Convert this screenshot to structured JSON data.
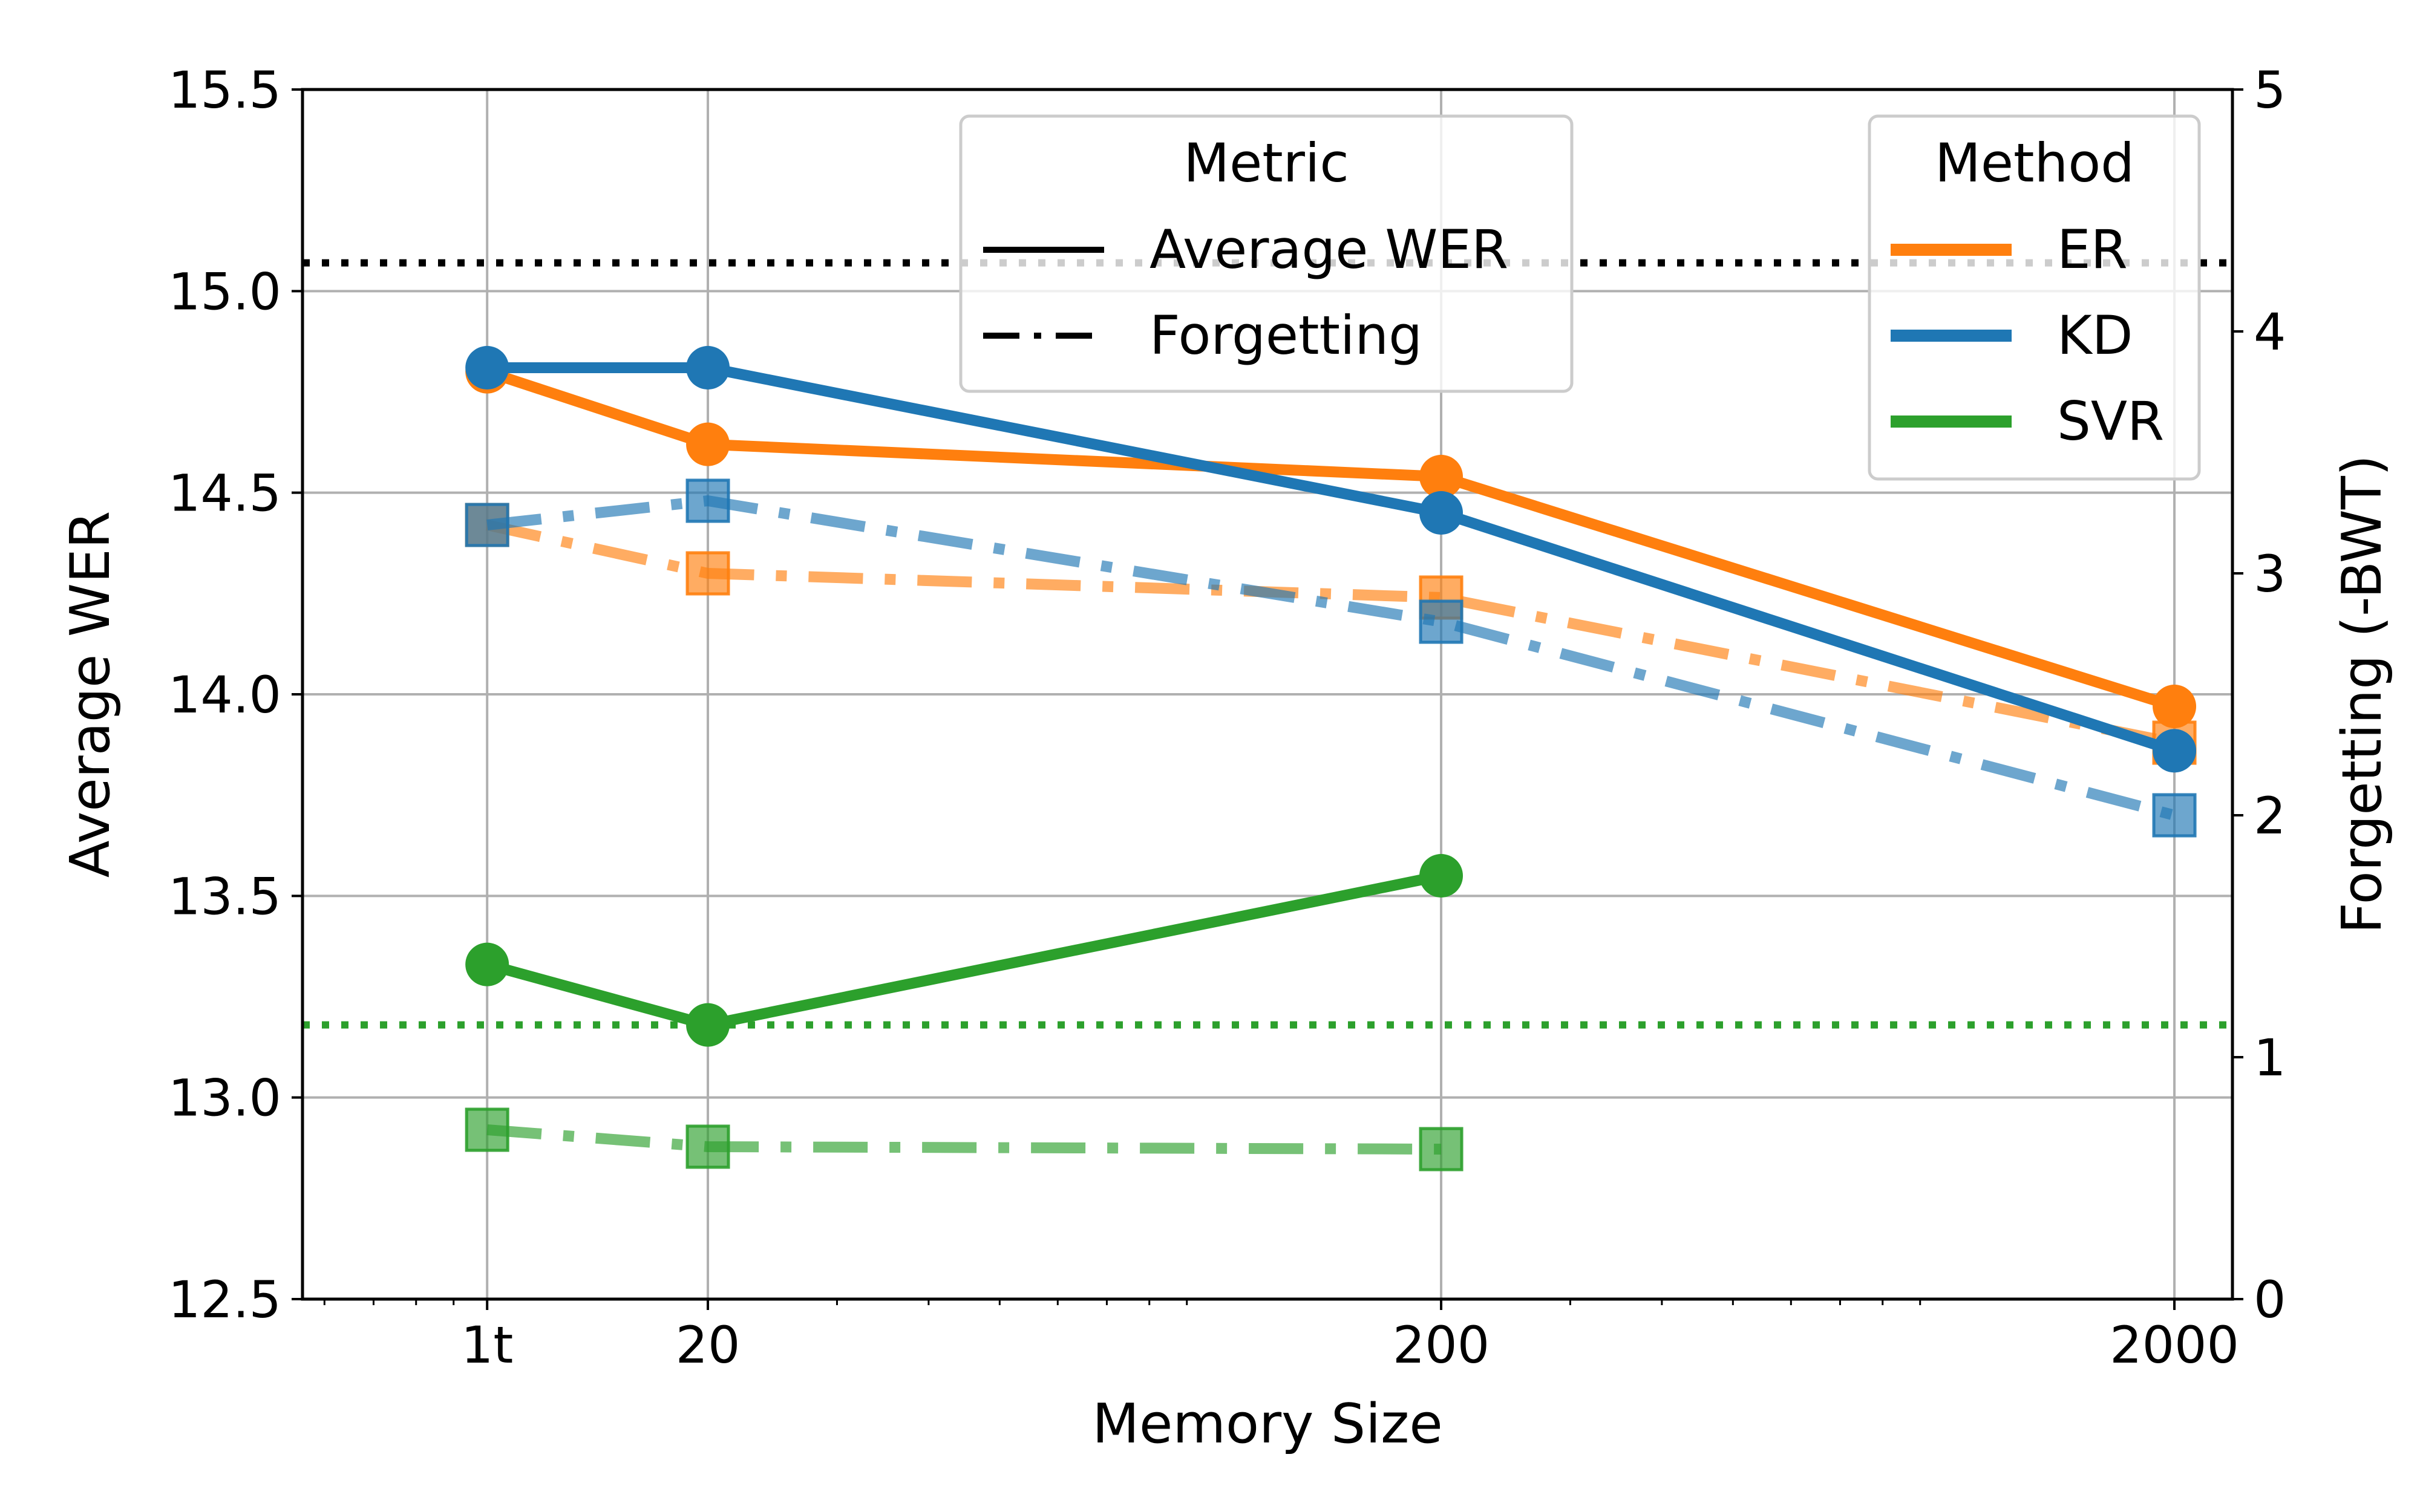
{
  "chart_data": {
    "type": "line",
    "xlabel": "Memory Size",
    "ylabel": "Average WER",
    "y2label": "Forgetting (-BWT)",
    "xscale": "log",
    "xlim": [
      5.6,
      2400
    ],
    "ylim": [
      12.5,
      15.5
    ],
    "y2lim": [
      0,
      5
    ],
    "grid": true,
    "x_ticks": [
      {
        "value": 10,
        "label": "1t"
      },
      {
        "value": 20,
        "label": "20"
      },
      {
        "value": 200,
        "label": "200"
      },
      {
        "value": 2000,
        "label": "2000"
      }
    ],
    "y_ticks": [
      {
        "value": 12.5,
        "label": "12.5"
      },
      {
        "value": 13.0,
        "label": "13.0"
      },
      {
        "value": 13.5,
        "label": "13.5"
      },
      {
        "value": 14.0,
        "label": "14.0"
      },
      {
        "value": 14.5,
        "label": "14.5"
      },
      {
        "value": 15.0,
        "label": "15.0"
      },
      {
        "value": 15.5,
        "label": "15.5"
      }
    ],
    "y2_ticks": [
      {
        "value": 0,
        "label": "0"
      },
      {
        "value": 1,
        "label": "1"
      },
      {
        "value": 2,
        "label": "2"
      },
      {
        "value": 3,
        "label": "3"
      },
      {
        "value": 4,
        "label": "4"
      },
      {
        "value": 5,
        "label": "5"
      }
    ],
    "reference_lines": [
      {
        "name": "black-dotted",
        "axis": "left",
        "value": 15.07,
        "color": "#000000"
      },
      {
        "name": "svr-dotted",
        "axis": "left",
        "value": 13.18,
        "color": "#2ca02c"
      }
    ],
    "series": [
      {
        "name": "ER",
        "metric": "Average WER",
        "axis": "left",
        "color": "#ff7f0e",
        "x": [
          10,
          20,
          200,
          2000
        ],
        "values": [
          14.8,
          14.62,
          14.54,
          13.97
        ]
      },
      {
        "name": "KD",
        "metric": "Average WER",
        "axis": "left",
        "color": "#1f77b4",
        "x": [
          10,
          20,
          200,
          2000
        ],
        "values": [
          14.81,
          14.81,
          14.45,
          13.86
        ]
      },
      {
        "name": "SVR",
        "metric": "Average WER",
        "axis": "left",
        "color": "#2ca02c",
        "x": [
          10,
          20,
          200
        ],
        "values": [
          13.33,
          13.18,
          13.55
        ]
      },
      {
        "name": "ER",
        "metric": "Forgetting",
        "axis": "right",
        "color": "#ff7f0e",
        "x": [
          10,
          20,
          200,
          2000
        ],
        "values": [
          3.2,
          3.0,
          2.9,
          2.3
        ]
      },
      {
        "name": "KD",
        "metric": "Forgetting",
        "axis": "right",
        "color": "#1f77b4",
        "x": [
          10,
          20,
          200,
          2000
        ],
        "values": [
          3.2,
          3.3,
          2.8,
          2.0
        ]
      },
      {
        "name": "SVR",
        "metric": "Forgetting",
        "axis": "right",
        "color": "#2ca02c",
        "x": [
          10,
          20,
          200
        ],
        "values": [
          0.7,
          0.63,
          0.62
        ]
      }
    ],
    "legends": {
      "metric": {
        "title": "Metric",
        "entries": [
          "Average WER",
          "Forgetting"
        ]
      },
      "method": {
        "title": "Method",
        "entries": [
          {
            "label": "ER",
            "color": "#ff7f0e"
          },
          {
            "label": "KD",
            "color": "#1f77b4"
          },
          {
            "label": "SVR",
            "color": "#2ca02c"
          }
        ]
      }
    }
  }
}
